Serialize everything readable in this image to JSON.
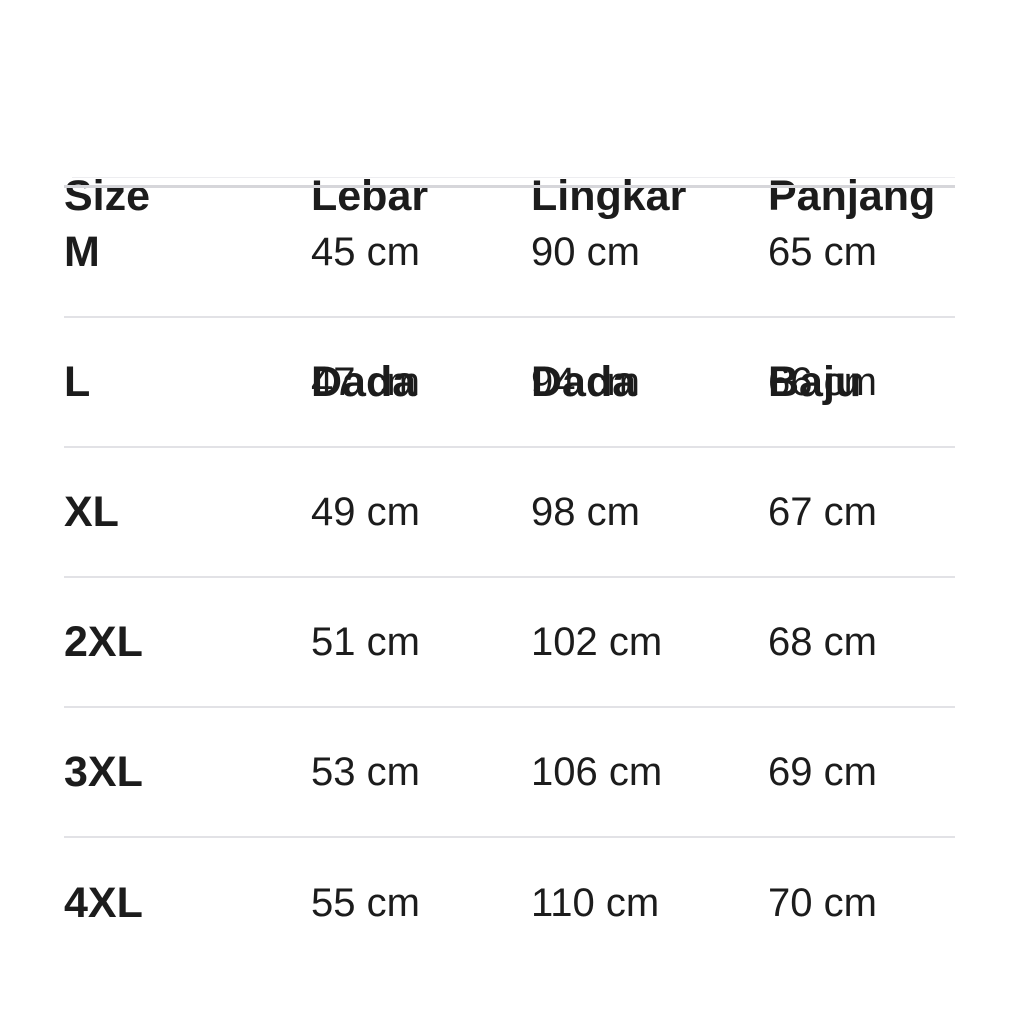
{
  "table": {
    "header": [
      {
        "line1": "Size",
        "line2": ""
      },
      {
        "line1": "Lebar",
        "line2": "Dada"
      },
      {
        "line1": "Lingkar",
        "line2": "Dada"
      },
      {
        "line1": "Panjang",
        "line2": "Baju"
      }
    ],
    "rows": [
      {
        "size": "M",
        "lebar_dada": "45 cm",
        "lingkar_dada": "90 cm",
        "panjang_baju": "65 cm"
      },
      {
        "size": "L",
        "lebar_dada": "47 cm",
        "lingkar_dada": "94 cm",
        "panjang_baju": "66 cm"
      },
      {
        "size": "XL",
        "lebar_dada": "49 cm",
        "lingkar_dada": "98 cm",
        "panjang_baju": "67 cm"
      },
      {
        "size": "2XL",
        "lebar_dada": "51 cm",
        "lingkar_dada": "102 cm",
        "panjang_baju": "68 cm"
      },
      {
        "size": "3XL",
        "lebar_dada": "53 cm",
        "lingkar_dada": "106 cm",
        "panjang_baju": "69 cm"
      },
      {
        "size": "4XL",
        "lebar_dada": "55 cm",
        "lingkar_dada": "110 cm",
        "panjang_baju": "70 cm"
      }
    ],
    "colors": {
      "text": "#1c1c1c",
      "header_rule": "#d6d6da",
      "row_rule": "#e2e2e6",
      "background": "#ffffff"
    }
  }
}
